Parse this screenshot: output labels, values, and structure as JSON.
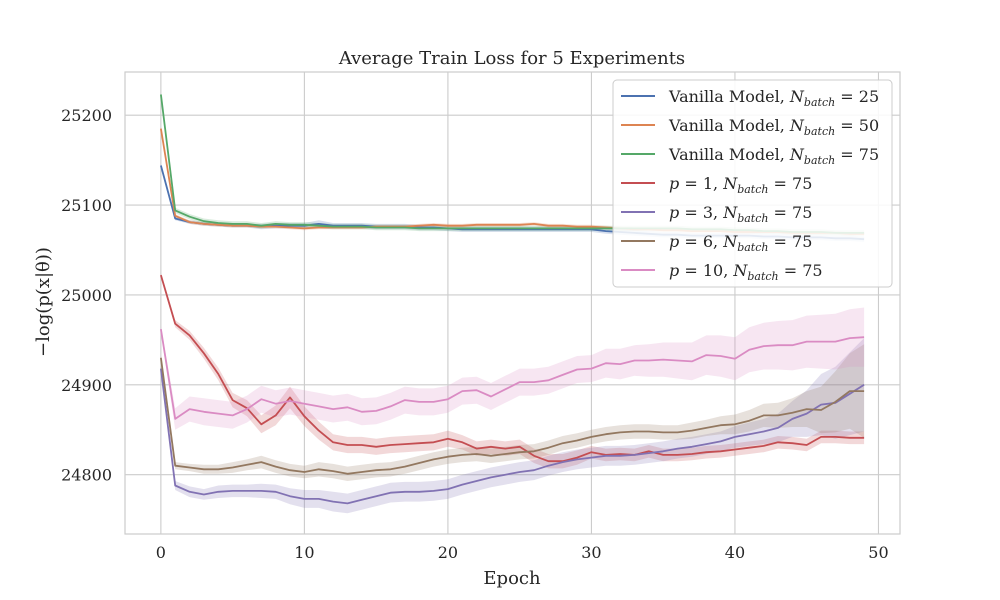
{
  "chart_data": {
    "type": "line",
    "title": "Average Train Loss for 5 Experiments",
    "xlabel": "Epoch",
    "ylabel": "−log(p(x|θ))",
    "xlim": [
      -2.5,
      51.5
    ],
    "ylim": [
      24734,
      25248
    ],
    "xticks": [
      0,
      10,
      20,
      30,
      40,
      50
    ],
    "yticks": [
      24800,
      24900,
      25000,
      25100,
      25200
    ],
    "grid": true,
    "legend_position": "top-right",
    "bands": "shaded uncertainty band around each series",
    "series": [
      {
        "name": "Vanilla Model, N_batch = 25",
        "legend": {
          "prefix": "Vanilla Model, ",
          "sym": "N",
          "sub": "batch",
          "suffix": " = 25"
        },
        "color": "#4c72b0",
        "values": [
          25144,
          25085,
          25081,
          25079,
          25078,
          25077,
          25077,
          25076,
          25077,
          25077,
          25077,
          25079,
          25077,
          25077,
          25077,
          25076,
          25076,
          25076,
          25075,
          25075,
          25074,
          25073,
          25073,
          25073,
          25073,
          25073,
          25073,
          25073,
          25073,
          25073,
          25073,
          25071,
          25070,
          25069,
          25068,
          25067,
          25067,
          25066,
          25066,
          25066,
          25066,
          25066,
          25065,
          25065,
          25064,
          25064,
          25064,
          25063,
          25063,
          25062
        ],
        "band": [
          2,
          2,
          2,
          2,
          2,
          2,
          2,
          3,
          3,
          3,
          3,
          4,
          3,
          3,
          3,
          3,
          3,
          3,
          3,
          3,
          3,
          3,
          3,
          3,
          3,
          3,
          3,
          3,
          3,
          3,
          3,
          3,
          3,
          3,
          3,
          3,
          3,
          3,
          3,
          3,
          3,
          3,
          3,
          3,
          3,
          3,
          3,
          3,
          3,
          3
        ]
      },
      {
        "name": "Vanilla Model, N_batch = 50",
        "legend": {
          "prefix": "Vanilla Model, ",
          "sym": "N",
          "sub": "batch",
          "suffix": " = 50"
        },
        "color": "#dd8452",
        "values": [
          25185,
          25088,
          25081,
          25079,
          25078,
          25077,
          25077,
          25076,
          25076,
          25075,
          25074,
          25075,
          25075,
          25075,
          25075,
          25076,
          25076,
          25076,
          25077,
          25078,
          25077,
          25077,
          25078,
          25078,
          25078,
          25078,
          25079,
          25077,
          25077,
          25076,
          25076,
          25075,
          25074,
          25073,
          25073,
          25072,
          25072,
          25071,
          25071,
          25071,
          25070,
          25070,
          25070,
          25070,
          25069,
          25069,
          25069,
          25069,
          25068,
          25068
        ],
        "band": [
          2,
          2,
          2,
          2,
          2,
          2,
          2,
          2,
          2,
          2,
          2,
          2,
          2,
          2,
          2,
          2,
          2,
          2,
          2,
          2,
          2,
          2,
          2,
          2,
          2,
          2,
          2,
          2,
          2,
          2,
          2,
          2,
          2,
          2,
          2,
          2,
          2,
          2,
          2,
          2,
          2,
          2,
          2,
          2,
          2,
          2,
          2,
          2,
          2,
          2
        ]
      },
      {
        "name": "Vanilla Model, N_batch = 75",
        "legend": {
          "prefix": "Vanilla Model, ",
          "sym": "N",
          "sub": "batch",
          "suffix": " = 75"
        },
        "color": "#55a868",
        "values": [
          25223,
          25094,
          25087,
          25082,
          25080,
          25079,
          25079,
          25077,
          25079,
          25078,
          25078,
          25077,
          25076,
          25076,
          25076,
          25075,
          25075,
          25075,
          25074,
          25074,
          25074,
          25074,
          25074,
          25074,
          25074,
          25074,
          25074,
          25074,
          25074,
          25074,
          25074,
          25074,
          25074,
          25074,
          25074,
          25074,
          25074,
          25073,
          25073,
          25073,
          25072,
          25072,
          25071,
          25071,
          25070,
          25070,
          25070,
          25069,
          25069,
          25069
        ],
        "band": [
          2,
          3,
          3,
          3,
          3,
          3,
          3,
          3,
          3,
          3,
          3,
          3,
          3,
          3,
          3,
          3,
          3,
          3,
          3,
          3,
          3,
          3,
          3,
          3,
          3,
          3,
          3,
          3,
          3,
          3,
          3,
          3,
          3,
          3,
          3,
          3,
          3,
          3,
          3,
          3,
          3,
          3,
          3,
          3,
          3,
          3,
          3,
          3,
          3,
          3
        ]
      },
      {
        "name": "p = 1, N_batch = 75",
        "legend": {
          "prefix": "",
          "sym": "p",
          "sub": "",
          "suffix": " = 1, ",
          "sym2": "N",
          "sub2": "batch",
          "suffix2": " = 75"
        },
        "color": "#c44e52",
        "values": [
          25022,
          24968,
          24955,
          24935,
          24912,
          24883,
          24874,
          24856,
          24866,
          24886,
          24865,
          24849,
          24836,
          24833,
          24833,
          24831,
          24833,
          24834,
          24835,
          24836,
          24840,
          24836,
          24829,
          24831,
          24829,
          24831,
          24821,
          24815,
          24815,
          24819,
          24825,
          24822,
          24823,
          24822,
          24826,
          24822,
          24822,
          24823,
          24825,
          24826,
          24828,
          24830,
          24832,
          24836,
          24835,
          24833,
          24842,
          24842,
          24841,
          24841
        ],
        "band": [
          2,
          4,
          5,
          6,
          7,
          8,
          9,
          10,
          11,
          12,
          11,
          10,
          9,
          9,
          9,
          9,
          9,
          9,
          9,
          9,
          9,
          8,
          8,
          8,
          8,
          8,
          8,
          8,
          8,
          8,
          7,
          7,
          7,
          7,
          7,
          7,
          7,
          7,
          7,
          7,
          7,
          7,
          7,
          7,
          7,
          7,
          7,
          7,
          7,
          7
        ]
      },
      {
        "name": "p = 3, N_batch = 75",
        "legend": {
          "prefix": "",
          "sym": "p",
          "sub": "",
          "suffix": " = 3, ",
          "sym2": "N",
          "sub2": "batch",
          "suffix2": " = 75"
        },
        "color": "#8172b3",
        "values": [
          24918,
          24788,
          24781,
          24778,
          24781,
          24782,
          24782,
          24782,
          24781,
          24776,
          24773,
          24773,
          24770,
          24768,
          24772,
          24776,
          24780,
          24781,
          24781,
          24782,
          24784,
          24789,
          24793,
          24797,
          24800,
          24803,
          24805,
          24810,
          24814,
          24817,
          24819,
          24821,
          24821,
          24822,
          24824,
          24826,
          24829,
          24831,
          24834,
          24837,
          24842,
          24845,
          24848,
          24852,
          24862,
          24868,
          24878,
          24880,
          24890,
          24900
        ],
        "band": [
          3,
          5,
          6,
          6,
          7,
          7,
          7,
          8,
          8,
          9,
          10,
          10,
          11,
          11,
          11,
          11,
          11,
          11,
          11,
          11,
          11,
          11,
          11,
          11,
          11,
          11,
          11,
          11,
          11,
          11,
          11,
          11,
          11,
          11,
          11,
          11,
          11,
          11,
          11,
          11,
          12,
          13,
          14,
          16,
          20,
          26,
          34,
          40,
          46,
          52
        ]
      },
      {
        "name": "p = 6, N_batch = 75",
        "legend": {
          "prefix": "",
          "sym": "p",
          "sub": "",
          "suffix": " = 6, ",
          "sym2": "N",
          "sub2": "batch",
          "suffix2": " = 75"
        },
        "color": "#937860",
        "values": [
          24930,
          24810,
          24808,
          24806,
          24806,
          24808,
          24811,
          24814,
          24809,
          24805,
          24803,
          24806,
          24804,
          24801,
          24803,
          24805,
          24806,
          24809,
          24813,
          24817,
          24820,
          24822,
          24823,
          24821,
          24823,
          24825,
          24826,
          24830,
          24835,
          24838,
          24842,
          24845,
          24847,
          24848,
          24848,
          24847,
          24847,
          24849,
          24852,
          24855,
          24856,
          24860,
          24866,
          24866,
          24869,
          24873,
          24872,
          24881,
          24893,
          24893
        ],
        "band": [
          3,
          4,
          4,
          5,
          5,
          6,
          6,
          7,
          7,
          7,
          7,
          8,
          8,
          8,
          8,
          8,
          8,
          8,
          8,
          8,
          8,
          8,
          8,
          8,
          8,
          8,
          8,
          8,
          8,
          8,
          8,
          8,
          8,
          8,
          8,
          8,
          8,
          9,
          9,
          10,
          11,
          12,
          13,
          14,
          16,
          20,
          26,
          34,
          42,
          52
        ]
      },
      {
        "name": "p = 10, N_batch = 75",
        "legend": {
          "prefix": "",
          "sym": "p",
          "sub": "",
          "suffix": " = 10, ",
          "sym2": "N",
          "sub2": "batch",
          "suffix2": " = 75"
        },
        "color": "#da8bc3",
        "values": [
          24962,
          24862,
          24873,
          24870,
          24868,
          24866,
          24873,
          24884,
          24879,
          24882,
          24879,
          24876,
          24873,
          24875,
          24870,
          24871,
          24876,
          24883,
          24881,
          24881,
          24884,
          24893,
          24894,
          24887,
          24895,
          24903,
          24903,
          24905,
          24911,
          24917,
          24918,
          24924,
          24923,
          24927,
          24927,
          24928,
          24927,
          24926,
          24933,
          24932,
          24929,
          24939,
          24943,
          24944,
          24944,
          24948,
          24948,
          24948,
          24952,
          24953
        ],
        "band": [
          4,
          12,
          14,
          15,
          15,
          15,
          15,
          15,
          15,
          15,
          15,
          15,
          15,
          15,
          15,
          15,
          15,
          15,
          15,
          15,
          15,
          15,
          15,
          15,
          15,
          15,
          15,
          15,
          15,
          15,
          15,
          16,
          17,
          17,
          18,
          19,
          20,
          21,
          22,
          23,
          24,
          25,
          26,
          27,
          28,
          29,
          30,
          31,
          32,
          33
        ]
      }
    ]
  }
}
